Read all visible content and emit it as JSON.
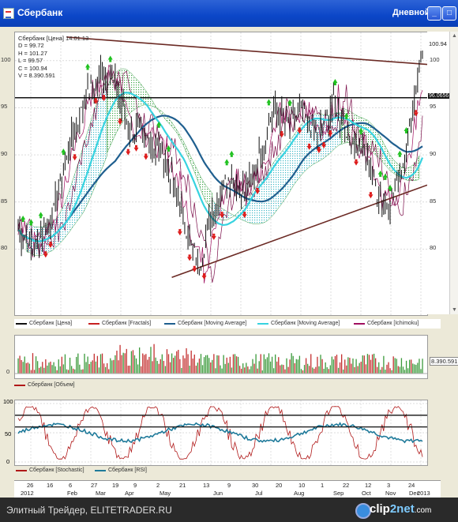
{
  "window": {
    "title": "Сбербанк",
    "period": "Дневной"
  },
  "readout": {
    "header": "Сбербанк [Цена] 14.01.13",
    "lines": [
      "D = 99.72",
      "H = 101.27",
      "L = 99.57",
      "C = 100.94",
      "V = 8.390.591"
    ]
  },
  "price_axis": {
    "ticks": [
      "100",
      "95",
      "90",
      "85",
      "80"
    ],
    "left_ticks": [
      "100",
      "95",
      "90",
      "85",
      "80"
    ],
    "last_price": "100.94",
    "level": "96.0656"
  },
  "legend": [
    {
      "label": "Сбербанк [Цена]",
      "color": "#111111"
    },
    {
      "label": "Сбербанк [Fractals]",
      "color": "#c62020"
    },
    {
      "label": "Сбербанк [Moving Average]",
      "color": "#1f5f8f"
    },
    {
      "label": "Сбербанк [Moving Average]",
      "color": "#37d3e0"
    },
    {
      "label": "Сбербанк [Ichimoku]",
      "color": "#a01060"
    }
  ],
  "volume": {
    "label": "Сбербанк [Объем]",
    "value": "8.390.591",
    "tick": "0"
  },
  "oscillator": {
    "ticks": [
      "100",
      "50",
      "0"
    ],
    "legend": [
      {
        "label": "Сбербанк [Stochastic]",
        "color": "#b01818"
      },
      {
        "label": "Сбербанк [RSI]",
        "color": "#1f7a9a"
      }
    ]
  },
  "date_axis": {
    "days": [
      "26",
      "16",
      "6",
      "27",
      "19",
      "9",
      "2",
      "21",
      "13",
      "9",
      "30",
      "20",
      "10",
      "1",
      "22",
      "12",
      "3",
      "24"
    ],
    "months": [
      "2012",
      "Feb",
      "Mar",
      "Apr",
      "May",
      "Jun",
      "Jul",
      "Aug",
      "Sep",
      "Oct",
      "Nov",
      "Dec",
      "2013"
    ]
  },
  "footer": {
    "text": "Элитный Трейдер, ELITETRADER.RU",
    "logo_a": "clip",
    "logo_b": "2net",
    "logo_c": ".com"
  },
  "colors": {
    "fractal_up": "#1fc21f",
    "fractal_down": "#dd1a1a",
    "cloud": "#58b85a",
    "trend": "#6b2a24"
  }
}
